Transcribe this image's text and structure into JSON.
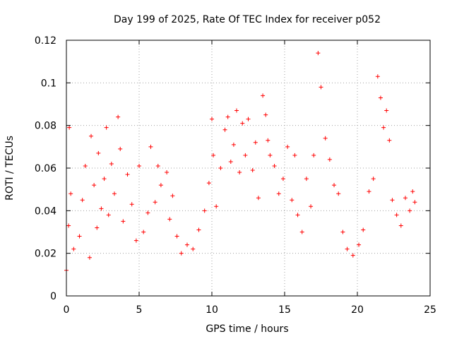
{
  "chart_data": {
    "type": "scatter",
    "title": "Day 199 of 2025, Rate Of TEC Index for receiver p052",
    "xlabel": "GPS time / hours",
    "ylabel": "ROTI / TECUs",
    "xlim": [
      0,
      25
    ],
    "ylim": [
      0,
      0.12
    ],
    "xticks": [
      0,
      5,
      10,
      15,
      20,
      25
    ],
    "xtick_labels": [
      "0",
      "5",
      "10",
      "15",
      "20",
      "25"
    ],
    "yticks": [
      0,
      0.02,
      0.04,
      0.06,
      0.08,
      0.1,
      0.12
    ],
    "ytick_labels": [
      "0",
      "0.02",
      "0.04",
      "0.06",
      "0.08",
      "0.1",
      "0.12"
    ],
    "grid": true,
    "marker": "+",
    "color": "#ff0000",
    "series": [
      {
        "x": [
          0.0,
          0.15,
          0.2,
          0.3,
          0.5,
          0.9,
          1.1,
          1.3,
          1.6,
          1.7,
          1.9,
          2.1,
          2.2,
          2.4,
          2.6,
          2.75,
          2.9,
          3.1,
          3.3,
          3.55,
          3.7,
          3.9,
          4.2,
          4.5,
          4.8,
          5.0,
          5.3,
          5.6,
          5.8,
          6.1,
          6.3,
          6.5,
          6.9,
          7.1,
          7.3,
          7.6,
          7.9,
          8.3,
          8.7,
          9.1,
          9.5,
          9.8,
          10.0,
          10.1,
          10.3,
          10.6,
          10.9,
          11.1,
          11.3,
          11.5,
          11.7,
          11.9,
          12.1,
          12.3,
          12.5,
          12.8,
          13.0,
          13.2,
          13.5,
          13.7,
          13.85,
          14.0,
          14.3,
          14.6,
          14.9,
          15.2,
          15.5,
          15.7,
          15.9,
          16.2,
          16.5,
          16.8,
          17.0,
          17.3,
          17.5,
          17.8,
          18.1,
          18.4,
          18.7,
          19.0,
          19.3,
          19.7,
          20.1,
          20.4,
          20.8,
          21.1,
          21.4,
          21.6,
          21.8,
          22.0,
          22.2,
          22.4,
          22.7,
          23.0,
          23.3,
          23.6,
          23.8,
          23.95
        ],
        "y": [
          0.012,
          0.033,
          0.079,
          0.048,
          0.022,
          0.028,
          0.045,
          0.061,
          0.018,
          0.075,
          0.052,
          0.032,
          0.067,
          0.041,
          0.055,
          0.079,
          0.038,
          0.062,
          0.048,
          0.084,
          0.069,
          0.035,
          0.057,
          0.043,
          0.026,
          0.061,
          0.03,
          0.039,
          0.07,
          0.044,
          0.061,
          0.052,
          0.058,
          0.036,
          0.047,
          0.028,
          0.02,
          0.024,
          0.022,
          0.031,
          0.04,
          0.053,
          0.083,
          0.066,
          0.042,
          0.06,
          0.078,
          0.084,
          0.063,
          0.071,
          0.087,
          0.058,
          0.081,
          0.066,
          0.083,
          0.059,
          0.072,
          0.046,
          0.094,
          0.085,
          0.073,
          0.066,
          0.061,
          0.048,
          0.055,
          0.07,
          0.045,
          0.066,
          0.038,
          0.03,
          0.055,
          0.042,
          0.066,
          0.114,
          0.098,
          0.074,
          0.064,
          0.052,
          0.048,
          0.03,
          0.022,
          0.019,
          0.024,
          0.031,
          0.049,
          0.055,
          0.103,
          0.093,
          0.079,
          0.087,
          0.073,
          0.045,
          0.038,
          0.033,
          0.046,
          0.04,
          0.049,
          0.044
        ]
      }
    ]
  }
}
